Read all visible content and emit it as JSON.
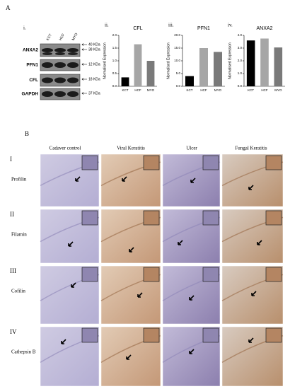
{
  "panel_a": {
    "label": "A",
    "blot": {
      "panel_label": "i.",
      "lanes": [
        "KCT",
        "HCF",
        "MYO"
      ],
      "proteins": [
        "ANXA2",
        "PFN1",
        "CFL",
        "GAPDH"
      ],
      "sizes": [
        "40 KDa",
        "38 KDa",
        "12 KDa",
        "18 KDa",
        "37 KDa"
      ]
    }
  },
  "chart_data": [
    {
      "type": "bar",
      "panel_label": "ii.",
      "title": "CFL",
      "y_label": "Normalised Expression",
      "categories": [
        "KCT",
        "HCF",
        "MYO"
      ],
      "values": [
        0.35,
        1.65,
        1.0
      ],
      "colors": [
        "#000000",
        "#a6a6a6",
        "#7a7a7a"
      ],
      "ylim": [
        0,
        2
      ],
      "yticks": [
        {
          "value": 0,
          "label": "0.0"
        },
        {
          "value": 0.5,
          "label": "0.5"
        },
        {
          "value": 1,
          "label": "1.0"
        },
        {
          "value": 1.5,
          "label": "1.5"
        },
        {
          "value": 2,
          "label": "2.0"
        }
      ]
    },
    {
      "type": "bar",
      "panel_label": "iii.",
      "title": "PFN1",
      "y_label": "Normalised Expression",
      "categories": [
        "KCT",
        "HCF",
        "MYO"
      ],
      "values": [
        4,
        15,
        13.5
      ],
      "colors": [
        "#000000",
        "#a6a6a6",
        "#7a7a7a"
      ],
      "ylim": [
        0,
        20
      ],
      "yticks": [
        {
          "value": 0,
          "label": "0.0"
        },
        {
          "value": 5,
          "label": "5.0"
        },
        {
          "value": 10,
          "label": "10.0"
        },
        {
          "value": 15,
          "label": "15.0"
        },
        {
          "value": 20,
          "label": "20.0"
        }
      ]
    },
    {
      "type": "bar",
      "panel_label": "iv.",
      "title": "ANXA2",
      "y_label": "Normalised Expression",
      "categories": [
        "KCT",
        "HCF",
        "MYO"
      ],
      "values": [
        3.6,
        3.75,
        3.05
      ],
      "colors": [
        "#000000",
        "#a6a6a6",
        "#7a7a7a"
      ],
      "ylim": [
        0,
        4
      ],
      "yticks": [
        {
          "value": 0,
          "label": "0.0"
        },
        {
          "value": 1,
          "label": "1.0"
        },
        {
          "value": 2,
          "label": "2.0"
        },
        {
          "value": 3,
          "label": "3.0"
        },
        {
          "value": 4,
          "label": "4.0"
        }
      ]
    }
  ],
  "panel_b": {
    "label": "B",
    "columns": [
      "Cadaver control",
      "Viral Keratitis",
      "Ulcer",
      "Fungal Keratitis"
    ],
    "rows": [
      {
        "numeral": "I",
        "name": "Profilin"
      },
      {
        "numeral": "II",
        "name": "Filamin"
      },
      {
        "numeral": "III",
        "name": "Cofilin"
      },
      {
        "numeral": "IV",
        "name": "Cathepsin B"
      }
    ]
  }
}
